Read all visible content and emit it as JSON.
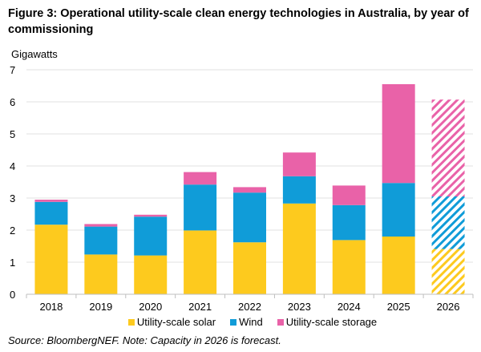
{
  "figure": {
    "title": "Figure 3:  Operational utility-scale clean energy technologies in Australia, by year of commissioning",
    "source_note": "Source: BloombergNEF. Note: Capacity in 2026 is forecast."
  },
  "chart_data": {
    "type": "bar",
    "stacked": true,
    "title": "Figure 3:  Operational utility-scale clean energy technologies in Australia, by year of commissioning",
    "xlabel": "",
    "ylabel": "Gigawatts",
    "ylim": [
      0,
      7
    ],
    "yticks": [
      0,
      1,
      2,
      3,
      4,
      5,
      6,
      7
    ],
    "grid": true,
    "legend_position": "bottom",
    "categories": [
      "2018",
      "2019",
      "2020",
      "2021",
      "2022",
      "2023",
      "2024",
      "2025",
      "2026"
    ],
    "forecast_categories": [
      "2026"
    ],
    "series": [
      {
        "name": "Utility-scale solar",
        "color": "#FDCA1E",
        "values": [
          2.17,
          1.24,
          1.21,
          1.99,
          1.62,
          2.83,
          1.69,
          1.8,
          1.41
        ]
      },
      {
        "name": "Wind",
        "color": "#109CD8",
        "values": [
          0.71,
          0.87,
          1.21,
          1.43,
          1.55,
          0.85,
          1.09,
          1.67,
          1.64
        ]
      },
      {
        "name": "Utility-scale storage",
        "color": "#E962A8",
        "values": [
          0.07,
          0.08,
          0.06,
          0.39,
          0.17,
          0.74,
          0.61,
          3.08,
          3.02
        ]
      }
    ]
  }
}
